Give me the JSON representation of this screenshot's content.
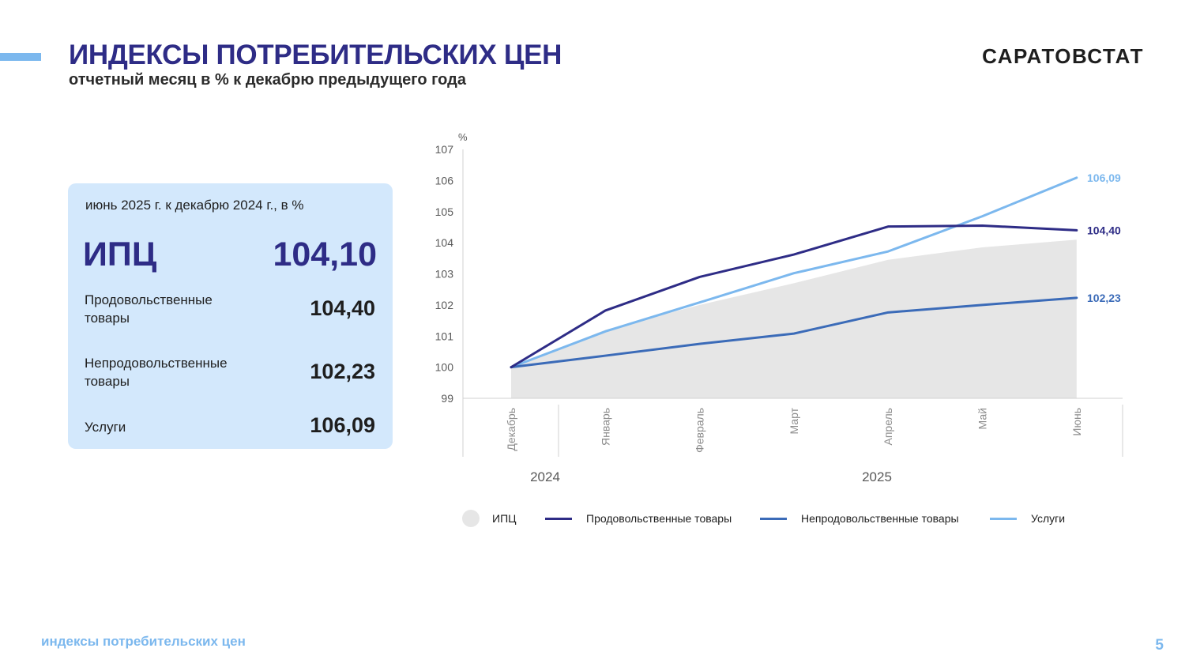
{
  "header": {
    "title": "ИНДЕКСЫ ПОТРЕБИТЕЛЬСКИХ ЦЕН",
    "subtitle": "отчетный месяц в % к декабрю предыдущего года",
    "brand": "САРАТОВСТАТ"
  },
  "card": {
    "caption": "июнь 2025 г. к декабрю 2024 г., в %",
    "cpi_label": "ИПЦ",
    "cpi_value": "104,10",
    "rows": [
      {
        "label": "Продовольственные товары",
        "value": "104,40"
      },
      {
        "label": "Непродовольственные товары",
        "value": "102,23"
      },
      {
        "label": "Услуги",
        "value": "106,09"
      }
    ]
  },
  "footer": {
    "text": "индексы потребительских цен",
    "page": "5"
  },
  "colors": {
    "title": "#2e2c86",
    "accent": "#7cb8ee",
    "card_bg": "#d3e8fc",
    "cpi_area": "#e6e6e6",
    "food": "#2e2c86",
    "nonfood": "#3b6bb8",
    "services": "#7cb8ee"
  },
  "chart_data": {
    "type": "line",
    "ylabel": "%",
    "ylim": [
      99,
      107
    ],
    "yticks": [
      "99",
      "100",
      "101",
      "102",
      "103",
      "104",
      "105",
      "106",
      "107"
    ],
    "categories": [
      "Декабрь",
      "Январь",
      "Февраль",
      "Март",
      "Апрель",
      "Май",
      "Июнь"
    ],
    "year_groups": [
      {
        "label": "2024",
        "from": 0,
        "to": 0
      },
      {
        "label": "2025",
        "from": 1,
        "to": 6
      }
    ],
    "series": [
      {
        "name": "ИПЦ",
        "kind": "area",
        "color": "#e6e6e6",
        "values": [
          100,
          101.2,
          102.0,
          102.7,
          103.45,
          103.85,
          104.1
        ]
      },
      {
        "name": "Продовольственные товары",
        "kind": "line",
        "color": "#2e2c86",
        "values": [
          100,
          101.82,
          102.9,
          103.62,
          104.52,
          104.55,
          104.4
        ],
        "end_label": "104,40"
      },
      {
        "name": "Непродовольственные товары",
        "kind": "line",
        "color": "#3b6bb8",
        "values": [
          100,
          100.37,
          100.75,
          101.08,
          101.76,
          102.0,
          102.23
        ],
        "end_label": "102,23"
      },
      {
        "name": "Услуги",
        "kind": "line",
        "color": "#7cb8ee",
        "values": [
          100,
          101.15,
          102.08,
          103.02,
          103.72,
          104.85,
          106.09
        ],
        "end_label": "106,09"
      }
    ],
    "legend": [
      {
        "name": "ИПЦ",
        "type": "dot",
        "color": "#e6e6e6"
      },
      {
        "name": "Продовольственные товары",
        "type": "line",
        "color": "#2e2c86"
      },
      {
        "name": "Непродовольственные товары",
        "type": "line",
        "color": "#3b6bb8"
      },
      {
        "name": "Услуги",
        "type": "line",
        "color": "#7cb8ee"
      }
    ],
    "grid": false,
    "legend_position": "bottom"
  }
}
